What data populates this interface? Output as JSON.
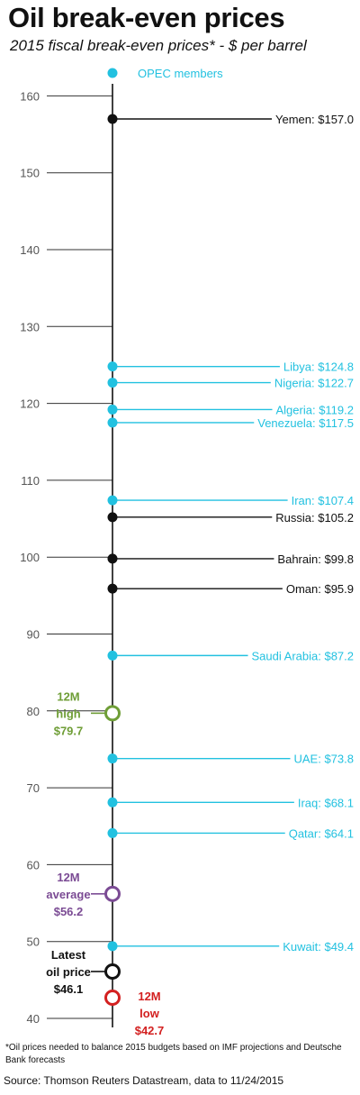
{
  "header": {
    "title": "Oil break-even prices",
    "subtitle": "2015 fiscal break-even prices* - $ per barrel"
  },
  "footer": {
    "footnote": "*Oil prices needed to balance 2015 budgets based on IMF projections and Deutsche Bank forecasts",
    "source": "Source: Thomson Reuters Datastream, data to 11/24/2015"
  },
  "colors": {
    "opec": "#22c1e0",
    "non_opec": "#111111",
    "high": "#6f9e37",
    "average": "#7b4b94",
    "low": "#d32020",
    "latest": "#111111",
    "axis": "#111111",
    "tick_label": "#555555"
  },
  "chart_data": {
    "type": "scatter",
    "title": "Oil break-even prices",
    "subtitle": "2015 fiscal break-even prices* - $ per barrel",
    "ylabel": "",
    "ylim": [
      40,
      162
    ],
    "yticks": [
      40,
      50,
      60,
      70,
      80,
      90,
      100,
      110,
      120,
      130,
      140,
      150,
      160
    ],
    "legend": {
      "label": "OPEC members",
      "placement": "top"
    },
    "series": [
      {
        "name": "OPEC members",
        "color_key": "opec",
        "points": [
          {
            "label": "Libya: $124.8",
            "value": 124.8
          },
          {
            "label": "Nigeria: $122.7",
            "value": 122.7
          },
          {
            "label": "Algeria: $119.2",
            "value": 119.2
          },
          {
            "label": "Venezuela: $117.5",
            "value": 117.5
          },
          {
            "label": "Iran: $107.4",
            "value": 107.4
          },
          {
            "label": "Saudi Arabia: $87.2",
            "value": 87.2
          },
          {
            "label": "UAE: $73.8",
            "value": 73.8
          },
          {
            "label": "Iraq: $68.1",
            "value": 68.1
          },
          {
            "label": "Qatar: $64.1",
            "value": 64.1
          },
          {
            "label": "Kuwait: $49.4",
            "value": 49.4
          }
        ]
      },
      {
        "color_key": "non_opec",
        "points": [
          {
            "label": "Yemen: $157.0",
            "value": 157.0
          },
          {
            "label": "Russia: $105.2",
            "value": 105.2
          },
          {
            "label": "Bahrain: $99.8",
            "value": 99.8
          },
          {
            "label": "Oman: $95.9",
            "value": 95.9
          }
        ]
      }
    ],
    "markers": [
      {
        "lines": [
          "12M",
          "high",
          "$79.7"
        ],
        "value": 79.7,
        "color_key": "high"
      },
      {
        "lines": [
          "12M",
          "average",
          "$56.2"
        ],
        "value": 56.2,
        "color_key": "average"
      },
      {
        "lines": [
          "Latest",
          "oil price",
          "$46.1"
        ],
        "value": 46.1,
        "color_key": "latest",
        "side": "left"
      },
      {
        "lines": [
          "12M",
          "low",
          "$42.7"
        ],
        "value": 42.7,
        "color_key": "low",
        "side": "right"
      }
    ]
  }
}
